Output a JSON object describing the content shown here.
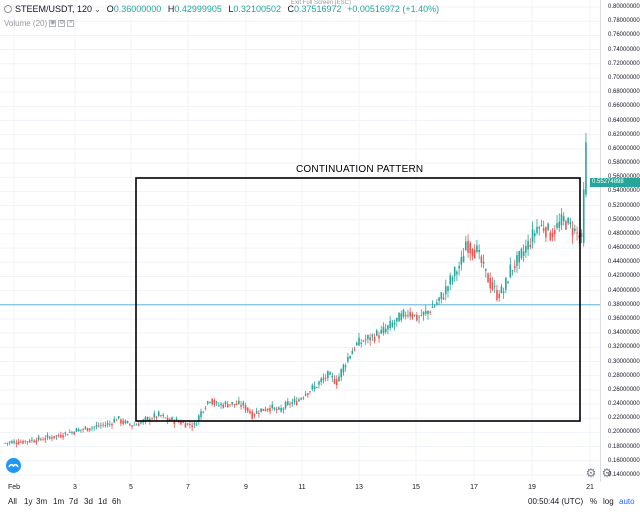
{
  "header": {
    "symbol": "STEEM/USDT, 120",
    "open_label": "O",
    "open": "0.36000000",
    "high_label": "H",
    "high": "0.42999905",
    "low_label": "L",
    "low": "0.32100502",
    "close_label": "C",
    "close": "0.37516972",
    "change": "+0.00516972 (+1.40%)",
    "fullscreen_hint": "Exit Full Screen (ESC)"
  },
  "volume": {
    "label": "Volume (20)"
  },
  "annotation": {
    "text": "CONTINUATION PATTERN"
  },
  "price_tag": "0.55274898",
  "colors": {
    "up": "#26a69a",
    "down": "#ef5350",
    "accent": "#2962ff"
  },
  "chart_data": {
    "type": "candlestick",
    "x_ticks": [
      "Feb",
      "3",
      "5",
      "7",
      "9",
      "11",
      "13",
      "15",
      "17",
      "19",
      "21"
    ],
    "y_ticks": [
      "0.80000000",
      "0.78000000",
      "0.76000000",
      "0.74000000",
      "0.72000000",
      "0.70000000",
      "0.68000000",
      "0.66000000",
      "0.64000000",
      "0.62000000",
      "0.60000000",
      "0.58000000",
      "0.56000000",
      "0.54000000",
      "0.52000000",
      "0.50000000",
      "0.48000000",
      "0.46000000",
      "0.44000000",
      "0.42000000",
      "0.40000000",
      "0.38000000",
      "0.36000000",
      "0.34000000",
      "0.32000000",
      "0.30000000",
      "0.28000000",
      "0.26000000",
      "0.24000000",
      "0.22000000",
      "0.20000000",
      "0.18000000",
      "0.16000000",
      "0.14000000"
    ],
    "ylim": [
      0.13,
      0.81
    ],
    "horizontal_line": 0.38,
    "anchors": [
      [
        0,
        0.185
      ],
      [
        8,
        0.187
      ],
      [
        16,
        0.19
      ],
      [
        24,
        0.195
      ],
      [
        30,
        0.2
      ],
      [
        36,
        0.205
      ],
      [
        40,
        0.207
      ],
      [
        44,
        0.21
      ],
      [
        48,
        0.212
      ],
      [
        51,
        0.22
      ],
      [
        54,
        0.214
      ],
      [
        58,
        0.21
      ],
      [
        62,
        0.214
      ],
      [
        66,
        0.22
      ],
      [
        70,
        0.224
      ],
      [
        74,
        0.218
      ],
      [
        78,
        0.216
      ],
      [
        82,
        0.212
      ],
      [
        86,
        0.21
      ],
      [
        90,
        0.235
      ],
      [
        93,
        0.248
      ],
      [
        96,
        0.238
      ],
      [
        100,
        0.24
      ],
      [
        104,
        0.24
      ],
      [
        108,
        0.238
      ],
      [
        112,
        0.225
      ],
      [
        116,
        0.232
      ],
      [
        120,
        0.235
      ],
      [
        124,
        0.23
      ],
      [
        128,
        0.24
      ],
      [
        132,
        0.244
      ],
      [
        136,
        0.256
      ],
      [
        140,
        0.264
      ],
      [
        144,
        0.276
      ],
      [
        146,
        0.28
      ],
      [
        150,
        0.272
      ],
      [
        154,
        0.3
      ],
      [
        158,
        0.322
      ],
      [
        162,
        0.33
      ],
      [
        166,
        0.335
      ],
      [
        170,
        0.34
      ],
      [
        174,
        0.35
      ],
      [
        178,
        0.36
      ],
      [
        182,
        0.37
      ],
      [
        186,
        0.362
      ],
      [
        190,
        0.368
      ],
      [
        194,
        0.38
      ],
      [
        198,
        0.395
      ],
      [
        202,
        0.42
      ],
      [
        206,
        0.44
      ],
      [
        208,
        0.47
      ],
      [
        210,
        0.46
      ],
      [
        213,
        0.455
      ],
      [
        216,
        0.43
      ],
      [
        219,
        0.41
      ],
      [
        222,
        0.395
      ],
      [
        225,
        0.4
      ],
      [
        228,
        0.43
      ],
      [
        231,
        0.44
      ],
      [
        234,
        0.455
      ],
      [
        237,
        0.47
      ],
      [
        240,
        0.49
      ],
      [
        243,
        0.49
      ],
      [
        246,
        0.48
      ],
      [
        249,
        0.49
      ],
      [
        252,
        0.5
      ],
      [
        255,
        0.49
      ],
      [
        258,
        0.48
      ],
      [
        260,
        0.47
      ],
      [
        262,
        0.6
      ]
    ]
  },
  "bottom": {
    "ranges": [
      "All",
      "1y",
      "3m",
      "1m",
      "7d",
      "3d",
      "1d",
      "6h"
    ],
    "clock": "00:50:44 (UTC)",
    "percent": "%",
    "log": "log",
    "auto": "auto"
  }
}
